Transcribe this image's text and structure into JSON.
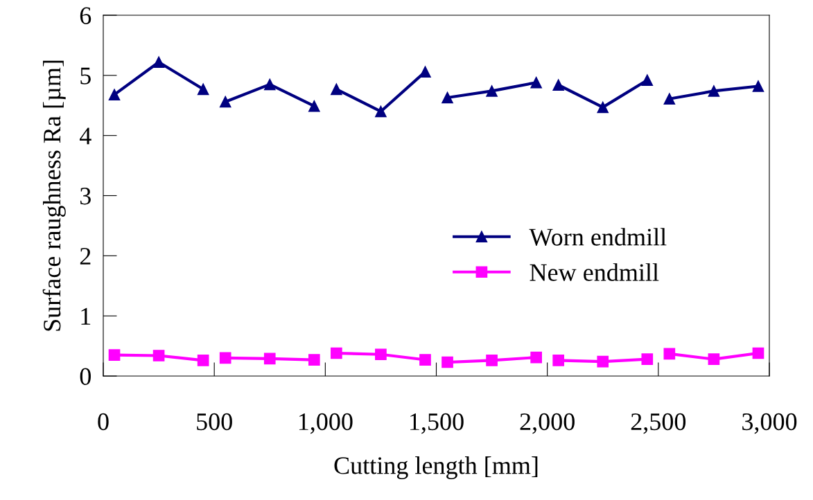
{
  "chart_data": {
    "type": "line",
    "xlabel": "Cutting length [mm]",
    "ylabel": "Surface raughness Ra [µm]",
    "x": [
      50,
      250,
      450,
      500,
      550,
      750,
      950,
      1000,
      1050,
      1250,
      1450,
      1500,
      1550,
      1750,
      1950,
      2000,
      2050,
      2250,
      2450,
      2500,
      2550,
      2750,
      2950
    ],
    "series": [
      {
        "name": "Worn endmill",
        "color": "#000080",
        "marker": "triangle",
        "values": [
          4.68,
          5.22,
          4.77,
          null,
          4.56,
          4.85,
          4.49,
          null,
          4.77,
          4.4,
          5.06,
          null,
          4.63,
          4.74,
          4.88,
          null,
          4.84,
          4.47,
          4.92,
          null,
          4.61,
          4.74,
          4.82
        ]
      },
      {
        "name": "New endmill",
        "color": "#ff00ff",
        "marker": "square",
        "values": [
          0.35,
          0.34,
          0.26,
          null,
          0.3,
          0.29,
          0.27,
          null,
          0.38,
          0.36,
          0.27,
          null,
          0.23,
          0.26,
          0.31,
          null,
          0.26,
          0.24,
          0.28,
          null,
          0.37,
          0.28,
          0.38
        ]
      }
    ],
    "xlim": [
      0,
      3000
    ],
    "xticks": [
      0,
      {
        "value": 500,
        "label": "500"
      },
      {
        "value": 1000,
        "label": "1,000"
      },
      {
        "value": 1500,
        "label": "1,500"
      },
      {
        "value": 2000,
        "label": "2,000"
      },
      {
        "value": 2500,
        "label": "2,500"
      },
      {
        "value": 3000,
        "label": "3,000"
      }
    ],
    "ylim": [
      0,
      6
    ],
    "yticks": [
      0,
      1,
      2,
      3,
      4,
      5,
      6
    ],
    "grid": false,
    "legend": "right",
    "line_style": "solid"
  }
}
